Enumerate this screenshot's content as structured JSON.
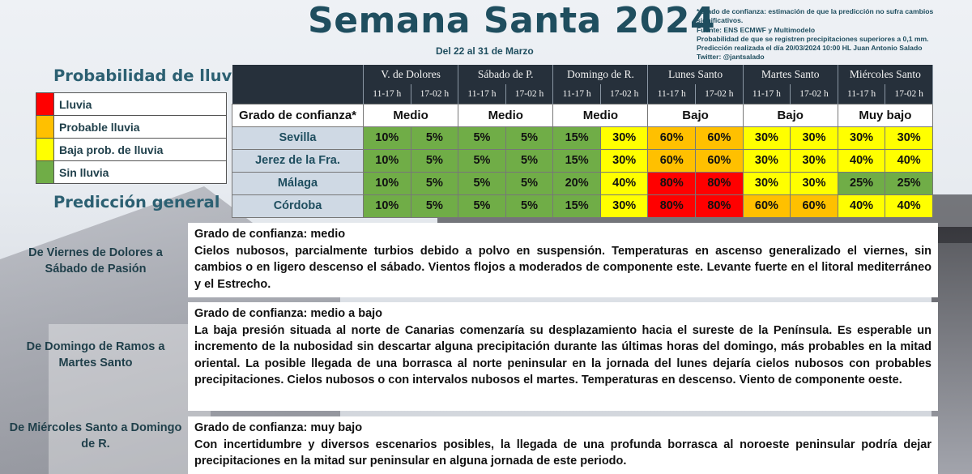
{
  "header": {
    "title": "Semana Santa 2024",
    "dates": "Del 22 al 31 de Marzo",
    "notes": [
      "*Grado de confianza: estimación de que la predicción no sufra cambios significativos.",
      "Fuente: ENS ECMWF y  Multimodelo",
      "Probabilidad de que se registren precipitaciones superiores a 0,1 mm.",
      "Predicción realizada el día 20/03/2024 10:00 HL Juan Antonio Salado",
      "Twitter: @jantsalado"
    ]
  },
  "legend": {
    "title": "Probabilidad de lluvia",
    "items": [
      {
        "label": "Lluvia",
        "color": "#ff0000"
      },
      {
        "label": "Probable lluvia",
        "color": "#ffc000"
      },
      {
        "label": "Baja prob. de lluvia",
        "color": "#ffff00"
      },
      {
        "label": "Sin lluvia",
        "color": "#70ad47"
      }
    ]
  },
  "forecast": {
    "days": [
      "V. de Dolores",
      "Sábado de P.",
      "Domingo de R.",
      "Lunes Santo",
      "Martes Santo",
      "Miércoles Santo"
    ],
    "slots": [
      "11-17 h",
      "17-02 h"
    ],
    "confidence_label": "Grado de confianza*",
    "confidence": [
      "Medio",
      "Medio",
      "Medio",
      "Bajo",
      "Bajo",
      "Muy bajo"
    ],
    "rows": [
      {
        "city": "Sevilla",
        "values": [
          "10%",
          "5%",
          "5%",
          "5%",
          "15%",
          "30%",
          "60%",
          "60%",
          "30%",
          "30%",
          "30%",
          "30%"
        ]
      },
      {
        "city": "Jerez de la Fra.",
        "values": [
          "10%",
          "5%",
          "5%",
          "5%",
          "15%",
          "30%",
          "60%",
          "60%",
          "30%",
          "30%",
          "40%",
          "40%"
        ]
      },
      {
        "city": "Málaga",
        "values": [
          "10%",
          "5%",
          "5%",
          "5%",
          "20%",
          "40%",
          "80%",
          "80%",
          "30%",
          "30%",
          "25%",
          "25%"
        ]
      },
      {
        "city": "Córdoba",
        "values": [
          "10%",
          "5%",
          "5%",
          "5%",
          "15%",
          "30%",
          "80%",
          "80%",
          "60%",
          "60%",
          "40%",
          "40%"
        ]
      }
    ]
  },
  "general": {
    "title": "Predicción general",
    "periods": [
      {
        "label": "De Viernes de Dolores a Sábado de Pasión",
        "confidence": "Grado de confianza: medio",
        "text": "Cielos nubosos, parcialmente turbios debido a polvo en suspensión. Temperaturas en ascenso generalizado el viernes, sin cambios o en ligero descenso el sábado. Vientos flojos a moderados de componente este. Levante fuerte en el litoral mediterráneo y el Estrecho."
      },
      {
        "label": "De Domingo de Ramos a Martes Santo",
        "confidence": "Grado de confianza: medio a bajo",
        "text": "La baja presión situada al norte de Canarias comenzaría su desplazamiento hacia el sureste de la Península.  Es esperable un incremento de la nubosidad sin descartar alguna precipitación durante las últimas horas del domingo, más probables en la mitad oriental. La posible llegada de una borrasca al norte peninsular en la jornada del lunes dejaría cielos nubosos con probables precipitaciones. Cielos nubosos o con intervalos nubosos el martes. Temperaturas en descenso. Viento de componente oeste."
      },
      {
        "label": "De Miércoles Santo a Domingo de R.",
        "confidence": "Grado de confianza: muy bajo",
        "text": "Con incertidumbre y diversos escenarios posibles, la llegada de una profunda borrasca al noroeste peninsular podría dejar precipitaciones en la mitad sur peninsular en alguna jornada de este periodo."
      }
    ]
  }
}
